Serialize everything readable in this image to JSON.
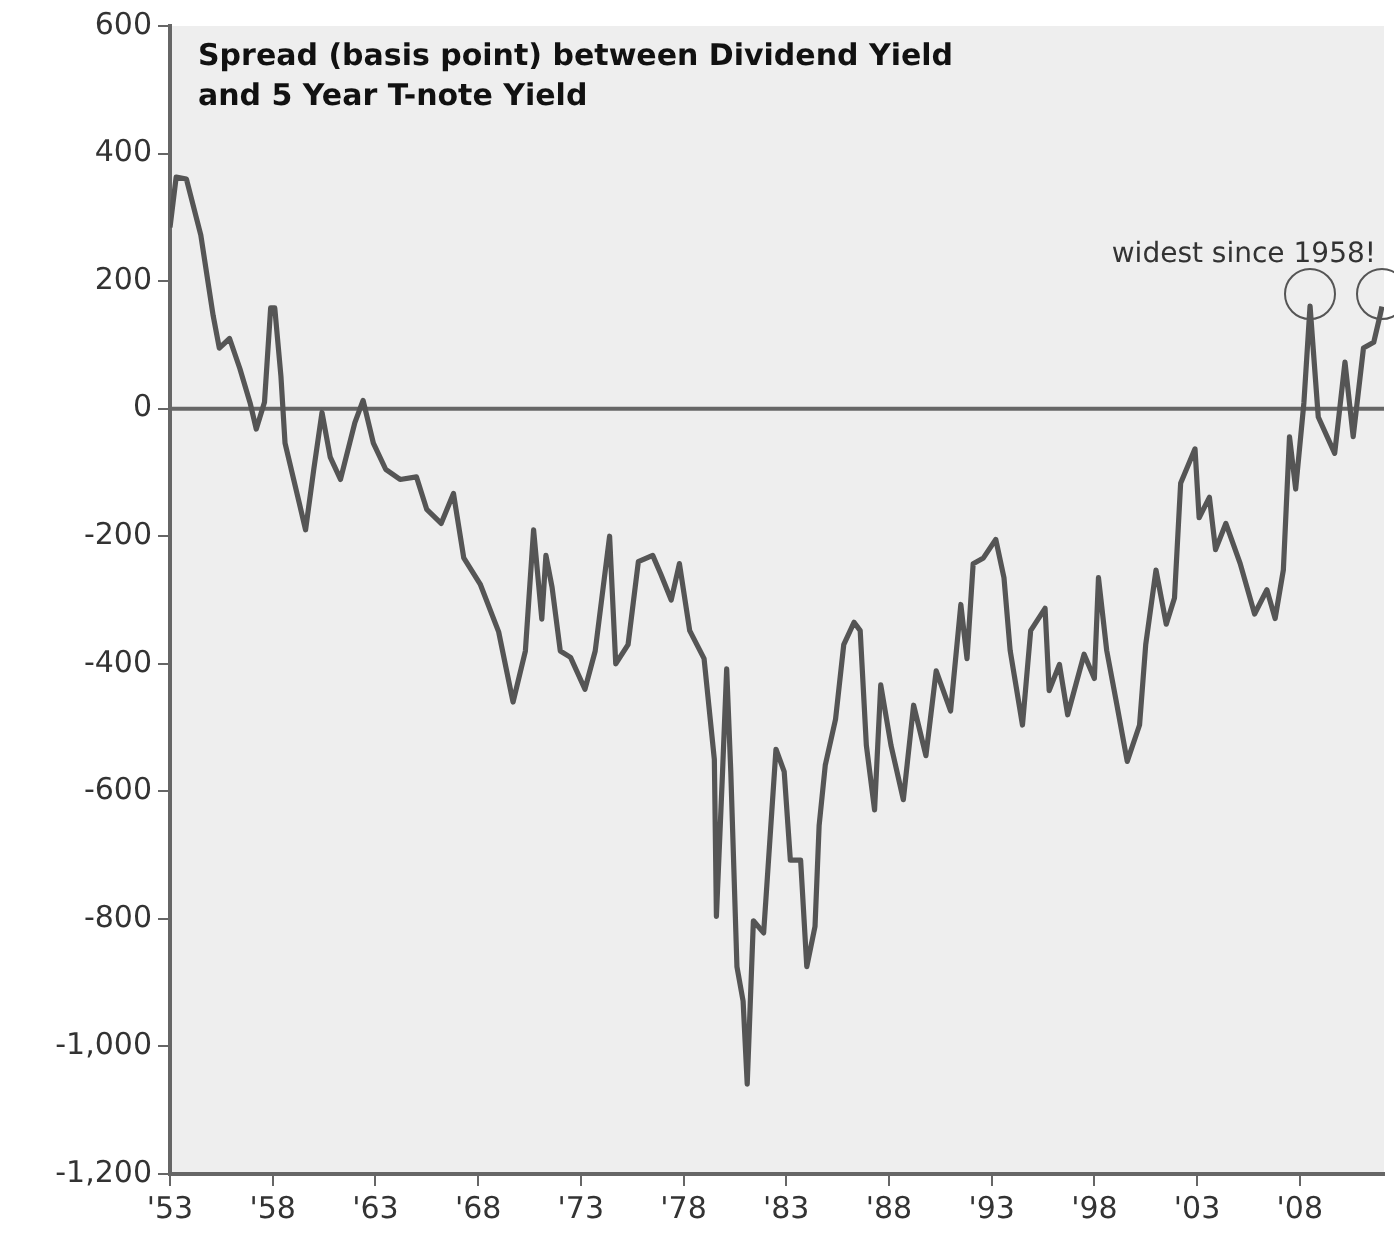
{
  "chart_data": {
    "type": "line",
    "title": "Spread (basis point) between Dividend Yield and 5 Year T-note Yield",
    "annotations": [
      {
        "text": "widest since 1958!",
        "x": 2008.5,
        "y": 161
      }
    ],
    "x": [
      1953,
      1953.3,
      1953.8,
      1954.5,
      1955.1,
      1955.4,
      1955.9,
      1956.4,
      1956.9,
      1957.2,
      1957.6,
      1957.9,
      1958.1,
      1958.4,
      1958.6,
      1959.3,
      1959.6,
      1960,
      1960.4,
      1960.8,
      1961.3,
      1962,
      1962.4,
      1962.9,
      1963.5,
      1964.2,
      1965,
      1965.5,
      1966.2,
      1966.8,
      1967.3,
      1968.1,
      1969,
      1969.7,
      1970.3,
      1970.7,
      1971.1,
      1971.3,
      1971.6,
      1972,
      1972.5,
      1973.2,
      1973.7,
      1974.4,
      1974.7,
      1975.3,
      1975.8,
      1976.5,
      1976.9,
      1977.4,
      1977.8,
      1978.3,
      1979,
      1979.5,
      1979.6,
      1979.9,
      1980.1,
      1980.3,
      1980.6,
      1980.9,
      1981.1,
      1981.4,
      1981.9,
      1982.5,
      1982.9,
      1983.2,
      1983.7,
      1984,
      1984.4,
      1984.6,
      1984.9,
      1985.4,
      1985.8,
      1986.3,
      1986.6,
      1986.9,
      1987.3,
      1987.6,
      1988.1,
      1988.7,
      1989.2,
      1989.8,
      1990.3,
      1991,
      1991.5,
      1991.8,
      1992.1,
      1992.6,
      1993.2,
      1993.6,
      1993.9,
      1994.5,
      1994.9,
      1995.6,
      1995.8,
      1996.3,
      1996.7,
      1997.5,
      1998,
      1998.2,
      1998.6,
      1999.1,
      1999.6,
      2000.2,
      2000.5,
      2001,
      2001.5,
      2001.9,
      2002.2,
      2002.9,
      2003.1,
      2003.6,
      2003.9,
      2004.4,
      2005.1,
      2005.8,
      2006.4,
      2006.8,
      2007.2,
      2007.5,
      2007.8,
      2008.2,
      2008.5,
      2008.9,
      2009.7,
      2010.2,
      2010.6,
      2011.1,
      2011.6,
      2011.9,
      2012
    ],
    "series": [
      {
        "color": "#555555",
        "values": [
          284,
          363,
          360,
          272,
          146,
          95,
          110,
          63,
          9,
          -32,
          10,
          158,
          158,
          51,
          -54,
          -149,
          -190,
          -95,
          -6,
          -76,
          -111,
          -22,
          13,
          -54,
          -95,
          -111,
          -107,
          -158,
          -180,
          -133,
          -234,
          -275,
          -350,
          -460,
          -380,
          -190,
          -330,
          -230,
          -280,
          -380,
          -390,
          -440,
          -380,
          -200,
          -400,
          -370,
          -240,
          -230,
          -260,
          -300,
          -243,
          -348,
          -392,
          -550,
          -796,
          -569,
          -408,
          -569,
          -875,
          -929,
          -1059,
          -803,
          -822,
          -534,
          -569,
          -708,
          -708,
          -875,
          -812,
          -654,
          -559,
          -487,
          -370,
          -335,
          -348,
          -528,
          -629,
          -433,
          -528,
          -613,
          -465,
          -544,
          -411,
          -474,
          -307,
          -392,
          -243,
          -234,
          -205,
          -265,
          -379,
          -496,
          -348,
          -313,
          -442,
          -401,
          -480,
          -385,
          -423,
          -265,
          -379,
          -465,
          -553,
          -496,
          -370,
          -253,
          -338,
          -297,
          -117,
          -63,
          -171,
          -139,
          -221,
          -180,
          -243,
          -322,
          -284,
          -329,
          -253,
          -44,
          -126,
          9,
          161,
          -13,
          -70,
          73,
          -44,
          95,
          104,
          145,
          160
        ]
      }
    ],
    "xlim": [
      1953,
      2012.1
    ],
    "xticks": [
      {
        "value": 1953,
        "label": "'53"
      },
      {
        "value": 1958,
        "label": "'58"
      },
      {
        "value": 1963,
        "label": "'63"
      },
      {
        "value": 1968,
        "label": "'68"
      },
      {
        "value": 1973,
        "label": "'73"
      },
      {
        "value": 1978,
        "label": "'78"
      },
      {
        "value": 1983,
        "label": "'83"
      },
      {
        "value": 1988,
        "label": "'88"
      },
      {
        "value": 1993,
        "label": "'93"
      },
      {
        "value": 1998,
        "label": "'98"
      },
      {
        "value": 2003,
        "label": "'03"
      },
      {
        "value": 2008,
        "label": "'08"
      }
    ],
    "ylim": [
      -1200,
      600
    ],
    "yticks": [
      {
        "value": -1200,
        "label": "-1,200"
      },
      {
        "value": -1000,
        "label": "-1,000"
      },
      -800,
      -600,
      -400,
      -200,
      0,
      200,
      400,
      600
    ],
    "ref_lines": [
      {
        "axis": "y",
        "value": 0,
        "color": "#666666"
      }
    ],
    "grid": false,
    "legend": false,
    "marker": "none",
    "line_style": "solid"
  }
}
